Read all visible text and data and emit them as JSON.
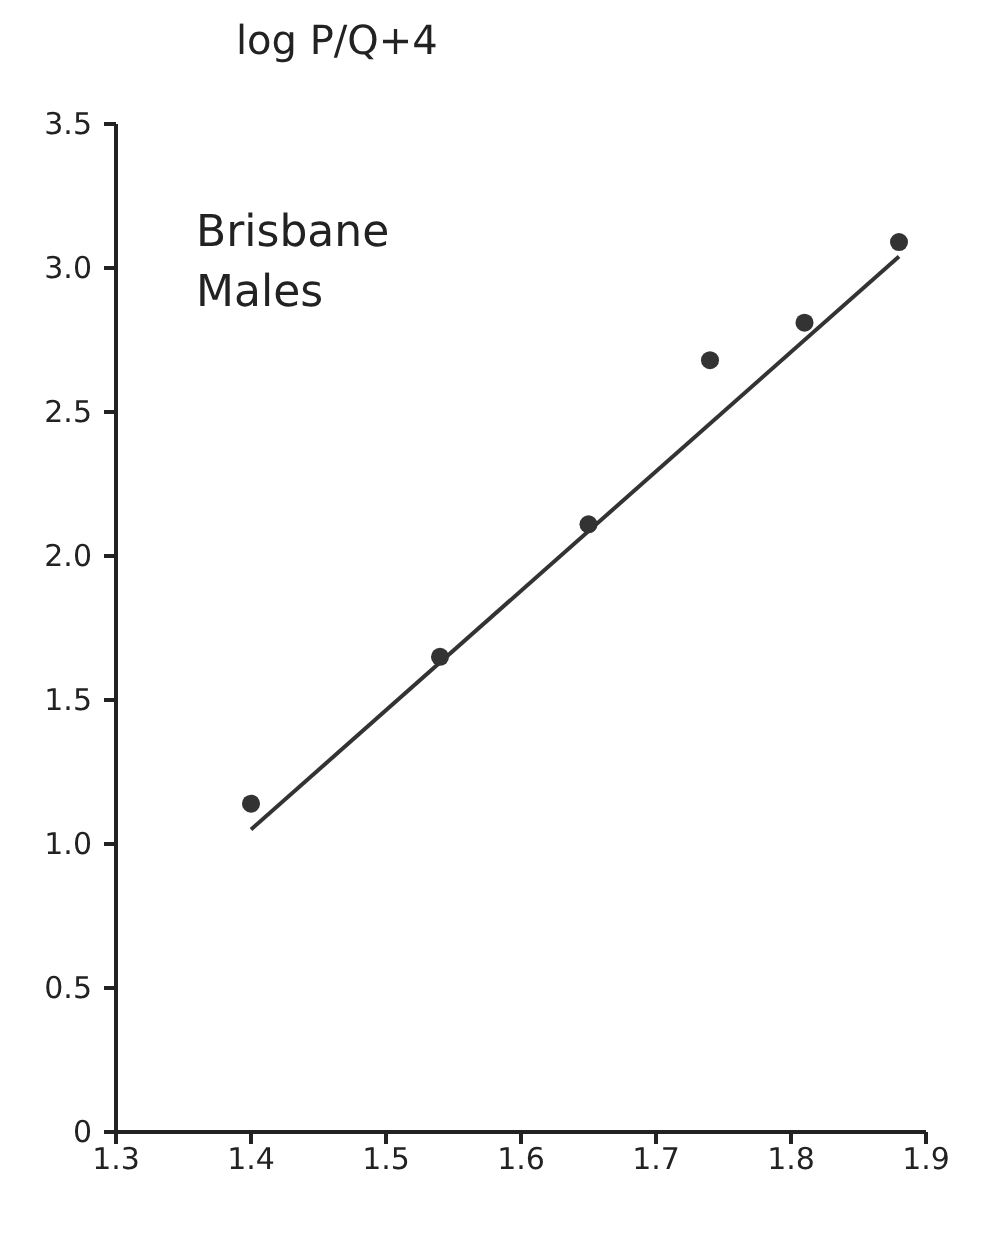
{
  "chart_data": {
    "type": "scatter",
    "ylabel": "log P/Q+4",
    "annotations": [
      "Brisbane Males"
    ],
    "xlim": [
      1.3,
      1.9
    ],
    "xticks": [
      1.3,
      1.4,
      1.5,
      1.6,
      1.7,
      1.8,
      1.9
    ],
    "ylim": [
      0,
      3.5
    ],
    "yticks": [
      0,
      0.5,
      {
        "value": 1,
        "label": "1.0"
      },
      1.5,
      {
        "value": 2,
        "label": "2.0"
      },
      2.5,
      {
        "value": 3,
        "label": "3.0"
      },
      3.5
    ],
    "grid": false,
    "series": [
      {
        "color": "#333333",
        "marker": "circle",
        "x": [
          1.4,
          1.54,
          1.65,
          1.74,
          1.81,
          1.88
        ],
        "values": [
          1.14,
          1.65,
          2.11,
          2.68,
          2.81,
          3.09
        ]
      },
      {
        "type": "line",
        "color": "#333333",
        "marker": "none",
        "line_style": "solid",
        "x": [
          1.4,
          1.88
        ],
        "values": [
          1.05,
          3.04
        ]
      }
    ]
  }
}
